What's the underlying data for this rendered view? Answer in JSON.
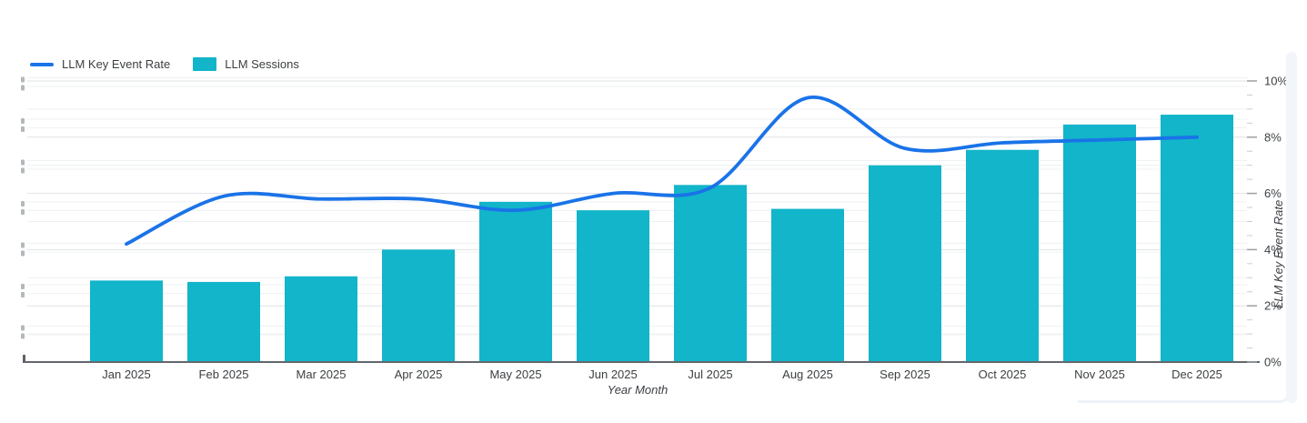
{
  "legend": {
    "items": [
      {
        "label": "LLM Key Event Rate",
        "swatch": "line",
        "color": "#1a73e8"
      },
      {
        "label": "LLM Sessions",
        "swatch": "square",
        "color": "#12b5c9"
      }
    ]
  },
  "chart_data": {
    "type": "combo",
    "categories": [
      "Jan 2025",
      "Feb 2025",
      "Mar 2025",
      "Apr 2025",
      "May 2025",
      "Jun 2025",
      "Jul 2025",
      "Aug 2025",
      "Sep 2025",
      "Oct 2025",
      "Nov 2025",
      "Dec 2025"
    ],
    "series": [
      {
        "name": "LLM Sessions",
        "type": "bar",
        "color": "#12b5c9",
        "axis": "left",
        "values_pct_of_right_axis": [
          2.9,
          2.85,
          3.05,
          4.0,
          5.7,
          5.4,
          6.3,
          5.45,
          7.0,
          7.55,
          8.45,
          8.8
        ]
      },
      {
        "name": "LLM Key Event Rate",
        "type": "line",
        "color": "#1a73e8",
        "axis": "right",
        "unit": "%",
        "values": [
          4.2,
          5.9,
          5.8,
          5.8,
          5.4,
          6.0,
          6.2,
          9.4,
          7.6,
          7.8,
          7.9,
          8.0
        ]
      }
    ],
    "xlabel": "Year Month",
    "right_axis": {
      "title": "LLM Key Event Rate",
      "ticks": [
        "0%",
        "2%",
        "4%",
        "6%",
        "8%",
        "10%"
      ],
      "range": [
        0,
        10
      ]
    },
    "left_axis": {
      "tick_labels_visible": false
    },
    "grid": true,
    "legend_position": "top-left"
  }
}
